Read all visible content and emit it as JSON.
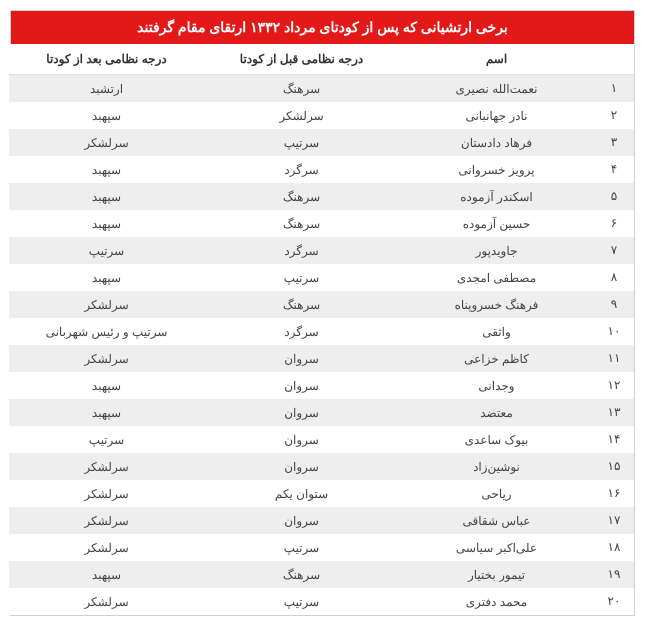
{
  "title": "برخی ارتشیانی که پس از کودتای مرداد ۱۳۳۲ ارتقای مقام گرفتند",
  "columns": [
    "",
    "اسم",
    "درجه نظامی قبل از کودتا",
    "درجه نظامی بعد از کودتا"
  ],
  "rows": [
    {
      "n": "۱",
      "name": "نعمت‌الله نصیری",
      "before": "سرهنگ",
      "after": "ارتشبد"
    },
    {
      "n": "۲",
      "name": "نادر جهانبانی",
      "before": "سرلشکر",
      "after": "سپهبد"
    },
    {
      "n": "۳",
      "name": "فرهاد دادستان",
      "before": "سرتیپ",
      "after": "سرلشکر"
    },
    {
      "n": "۴",
      "name": "پرویز خسروانی",
      "before": "سرگرد",
      "after": "سپهبد"
    },
    {
      "n": "۵",
      "name": "اسکندر آزموده",
      "before": "سرهنگ",
      "after": "سپهبد"
    },
    {
      "n": "۶",
      "name": "حسین آزموده",
      "before": "سرهنگ",
      "after": "سپهبد"
    },
    {
      "n": "۷",
      "name": "جاویدپور",
      "before": "سرگرد",
      "after": "سرتیپ"
    },
    {
      "n": "۸",
      "name": "مصطفی امجدی",
      "before": "سرتیپ",
      "after": "سپهبد"
    },
    {
      "n": "۹",
      "name": "فرهنگ خسروپناه",
      "before": "سرهنگ",
      "after": "سرلشکر"
    },
    {
      "n": "۱۰",
      "name": "واثقی",
      "before": "سرگرد",
      "after": "سرتیپ و رئیس شهربانی"
    },
    {
      "n": "۱۱",
      "name": "کاظم خزاعی",
      "before": "سروان",
      "after": "سرلشکر"
    },
    {
      "n": "۱۲",
      "name": "وجدانی",
      "before": "سروان",
      "after": "سپهبد"
    },
    {
      "n": "۱۳",
      "name": "معتضد",
      "before": "سروان",
      "after": "سپهبد"
    },
    {
      "n": "۱۴",
      "name": "بیوک ساعدی",
      "before": "سروان",
      "after": "سرتیپ"
    },
    {
      "n": "۱۵",
      "name": "نوشین‌زاد",
      "before": "سروان",
      "after": "سرلشکر"
    },
    {
      "n": "۱۶",
      "name": "ریاحی",
      "before": "ستوان یکم",
      "after": "سرلشکر"
    },
    {
      "n": "۱۷",
      "name": "عباس شقاقی",
      "before": "سروان",
      "after": "سرلشکر"
    },
    {
      "n": "۱۸",
      "name": "علی‌اکبر سیاسی",
      "before": "سرتیپ",
      "after": "سرلشکر"
    },
    {
      "n": "۱۹",
      "name": "تیمور بختیار",
      "before": "سرهنگ",
      "after": "سپهبد"
    },
    {
      "n": "۲۰",
      "name": "محمد دفتری",
      "before": "سرتیپ",
      "after": "سرلشکر"
    }
  ],
  "styling": {
    "title_bg": "#e31818",
    "title_fg": "#ffffff",
    "row_odd_bg": "#eeeeee",
    "row_even_bg": "#ffffff",
    "text_color": "#444444",
    "border_color": "#d0d0d0",
    "font_size_title": 14,
    "font_size_cell": 12
  }
}
